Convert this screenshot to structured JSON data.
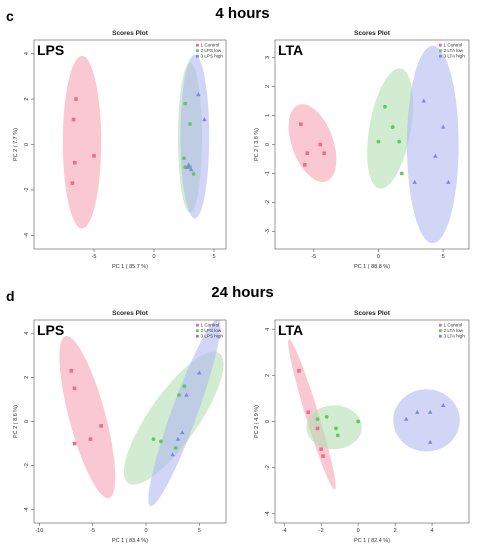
{
  "section_c": {
    "letter": "c",
    "title": "4 hours"
  },
  "section_d": {
    "letter": "d",
    "title": "24 hours"
  },
  "chart_data": [
    {
      "type": "scatter",
      "panel_label": "LPS",
      "title": "Scores Plot",
      "xlabel": "PC 1 ( 85.7 %)",
      "ylabel": "PC 2 ( 7.7 %)",
      "xlim": [
        -10,
        6
      ],
      "ylim": [
        -4.6,
        4.6
      ],
      "xticks": [
        -5,
        0,
        5
      ],
      "yticks": [
        -4,
        -2,
        0,
        2,
        4
      ],
      "legend_position": "top-right",
      "series": [
        {
          "name": "1 Control",
          "color": "#f36a8a",
          "fill": "#f5a3b5",
          "marker": "square",
          "points": [
            [
              -6.5,
              2.0
            ],
            [
              -6.7,
              1.1
            ],
            [
              -5.0,
              -0.5
            ],
            [
              -6.6,
              -0.8
            ],
            [
              -6.8,
              -1.7
            ]
          ],
          "ellipse": {
            "cx": -6.0,
            "cy": 0.1,
            "rx": 1.6,
            "ry": 3.8,
            "angle": 0
          }
        },
        {
          "name": "2 LPS low",
          "color": "#66c466",
          "fill": "#b3e0b3",
          "marker": "circle",
          "points": [
            [
              2.6,
              1.8
            ],
            [
              3.0,
              0.9
            ],
            [
              2.5,
              -0.6
            ],
            [
              2.6,
              -1.0
            ],
            [
              3.3,
              -1.3
            ],
            [
              3.0,
              -1.0
            ]
          ],
          "ellipse": {
            "cx": 3.0,
            "cy": 0.3,
            "rx": 1.0,
            "ry": 3.3,
            "angle": 0
          }
        },
        {
          "name": "3 LPS high",
          "color": "#7a86e6",
          "fill": "#b3b9f0",
          "marker": "triangle",
          "points": [
            [
              3.7,
              2.2
            ],
            [
              4.2,
              1.1
            ],
            [
              2.8,
              -1.0
            ],
            [
              2.9,
              -0.9
            ],
            [
              3.1,
              -1.1
            ]
          ],
          "ellipse": {
            "cx": 3.4,
            "cy": 0.35,
            "rx": 1.2,
            "ry": 3.6,
            "angle": 0
          }
        }
      ]
    },
    {
      "type": "scatter",
      "panel_label": "LTA",
      "title": "Scores Plot",
      "xlabel": "PC 1 ( 88.8 %)",
      "ylabel": "PC 2 ( 3.8 %)",
      "xlim": [
        -8,
        7
      ],
      "ylim": [
        -3.6,
        3.6
      ],
      "xticks": [
        -5,
        0,
        5
      ],
      "yticks": [
        -3,
        -2,
        -1,
        0,
        1,
        2,
        3
      ],
      "legend_position": "top-right",
      "series": [
        {
          "name": "1 Control",
          "color": "#f36a8a",
          "fill": "#f5a3b5",
          "marker": "square",
          "points": [
            [
              -6.0,
              0.7
            ],
            [
              -4.5,
              0.0
            ],
            [
              -5.5,
              -0.3
            ],
            [
              -4.2,
              -0.3
            ],
            [
              -5.7,
              -0.7
            ]
          ],
          "ellipse": {
            "cx": -5.1,
            "cy": 0.05,
            "rx": 1.6,
            "ry": 1.4,
            "angle": -20
          }
        },
        {
          "name": "2 LTA low",
          "color": "#66c466",
          "fill": "#b3e0b3",
          "marker": "circle",
          "points": [
            [
              0.5,
              1.3
            ],
            [
              1.1,
              0.6
            ],
            [
              0.0,
              0.1
            ],
            [
              1.6,
              0.1
            ],
            [
              1.8,
              -1.0
            ]
          ],
          "ellipse": {
            "cx": 0.9,
            "cy": 0.55,
            "rx": 1.6,
            "ry": 2.1,
            "angle": 10
          }
        },
        {
          "name": "3 LTA high",
          "color": "#7a86e6",
          "fill": "#b3b9f0",
          "marker": "triangle",
          "points": [
            [
              3.5,
              1.5
            ],
            [
              5.0,
              0.6
            ],
            [
              4.4,
              -0.4
            ],
            [
              2.8,
              -1.3
            ],
            [
              5.4,
              -1.3
            ]
          ],
          "ellipse": {
            "cx": 4.2,
            "cy": 0.0,
            "rx": 2.0,
            "ry": 3.4,
            "angle": 0
          }
        }
      ]
    },
    {
      "type": "scatter",
      "panel_label": "LPS",
      "title": "Scores Plot",
      "xlabel": "PC 1 ( 83.4 %)",
      "ylabel": "PC 2 ( 8.6 %)",
      "xlim": [
        -10.5,
        7.5
      ],
      "ylim": [
        -4.6,
        4.6
      ],
      "xticks": [
        -10,
        -5,
        0,
        5
      ],
      "yticks": [
        -4,
        -2,
        0,
        2,
        4
      ],
      "legend_position": "top-right",
      "series": [
        {
          "name": "1 Control",
          "color": "#f36a8a",
          "fill": "#f5a3b5",
          "marker": "square",
          "points": [
            [
              -7.0,
              2.3
            ],
            [
              -6.7,
              1.5
            ],
            [
              -4.2,
              -0.2
            ],
            [
              -5.2,
              -0.8
            ],
            [
              -6.7,
              -1.0
            ]
          ],
          "ellipse": {
            "cx": -5.5,
            "cy": 0.2,
            "rx": 1.7,
            "ry": 3.8,
            "angle": -15
          }
        },
        {
          "name": "2 LPS low",
          "color": "#66c466",
          "fill": "#b3e0b3",
          "marker": "circle",
          "points": [
            [
              3.6,
              1.6
            ],
            [
              3.1,
              1.2
            ],
            [
              0.7,
              -0.8
            ],
            [
              1.4,
              -0.9
            ],
            [
              2.8,
              -1.2
            ]
          ],
          "ellipse": {
            "cx": 2.6,
            "cy": 0.15,
            "rx": 2.3,
            "ry": 3.6,
            "angle": 35
          }
        },
        {
          "name": "3 LPS high",
          "color": "#7a86e6",
          "fill": "#b3b9f0",
          "marker": "triangle",
          "points": [
            [
              5.0,
              2.2
            ],
            [
              3.8,
              1.2
            ],
            [
              3.4,
              -0.5
            ],
            [
              3.0,
              -0.8
            ],
            [
              2.5,
              -1.5
            ]
          ],
          "ellipse": {
            "cx": 3.6,
            "cy": 0.4,
            "rx": 1.2,
            "ry": 4.5,
            "angle": 20
          }
        }
      ]
    },
    {
      "type": "scatter",
      "panel_label": "LTA",
      "title": "Scores Plot",
      "xlabel": "PC 1 ( 82.4 %)",
      "ylabel": "PC 2 ( 4.9 %)",
      "xlim": [
        -4.5,
        6
      ],
      "ylim": [
        -4.4,
        4.4
      ],
      "xticks": [
        -4,
        -2,
        0,
        2,
        4
      ],
      "yticks": [
        -4,
        -2,
        0,
        2,
        4
      ],
      "legend_position": "top-right",
      "series": [
        {
          "name": "1 Control",
          "color": "#f36a8a",
          "fill": "#f5a3b5",
          "marker": "square",
          "points": [
            [
              -3.2,
              2.2
            ],
            [
              -2.7,
              0.4
            ],
            [
              -2.2,
              -0.3
            ],
            [
              -2.0,
              -1.2
            ],
            [
              -1.9,
              -1.5
            ]
          ],
          "ellipse": {
            "cx": -2.5,
            "cy": 0.3,
            "rx": 0.35,
            "ry": 3.4,
            "angle": -17
          }
        },
        {
          "name": "2 LTA low",
          "color": "#66c466",
          "fill": "#b3e0b3",
          "marker": "circle",
          "points": [
            [
              -1.7,
              0.2
            ],
            [
              -1.2,
              -0.3
            ],
            [
              -1.1,
              -0.6
            ],
            [
              0.0,
              0.0
            ],
            [
              -2.2,
              0.1
            ]
          ],
          "ellipse": {
            "cx": -1.3,
            "cy": -0.25,
            "rx": 1.5,
            "ry": 0.95,
            "angle": 0
          }
        },
        {
          "name": "3 LTA high",
          "color": "#7a86e6",
          "fill": "#b3b9f0",
          "marker": "triangle",
          "points": [
            [
              2.6,
              0.1
            ],
            [
              3.2,
              0.4
            ],
            [
              3.9,
              0.4
            ],
            [
              4.6,
              0.7
            ],
            [
              3.9,
              -0.9
            ]
          ],
          "ellipse": {
            "cx": 3.7,
            "cy": 0.05,
            "rx": 1.8,
            "ry": 1.35,
            "angle": 0
          }
        }
      ]
    }
  ]
}
